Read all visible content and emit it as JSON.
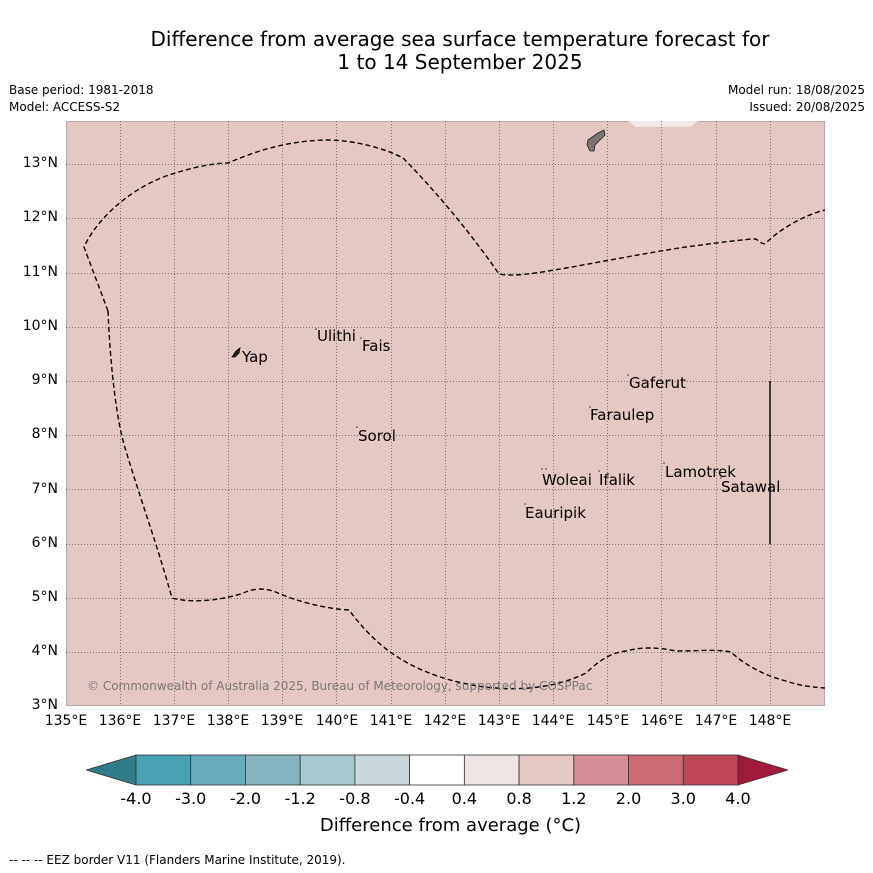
{
  "title": {
    "line1": "Difference from average sea surface temperature forecast for",
    "line2": "1 to 14 September 2025"
  },
  "meta": {
    "base_period": "Base period: 1981-2018",
    "model": "Model: ACCESS-S2",
    "model_run": "Model run: 18/08/2025",
    "issued": "Issued: 20/08/2025"
  },
  "map": {
    "fill_color": "#e6c8c3",
    "longitude_labels": [
      "135°E",
      "136°E",
      "137°E",
      "138°E",
      "139°E",
      "140°E",
      "141°E",
      "142°E",
      "143°E",
      "144°E",
      "145°E",
      "146°E",
      "147°E",
      "148°E"
    ],
    "latitude_labels": [
      "13°N",
      "12°N",
      "11°N",
      "10°N",
      "9°N",
      "8°N",
      "7°N",
      "6°N",
      "5°N",
      "4°N",
      "3°N"
    ],
    "places": [
      {
        "name": "Yap"
      },
      {
        "name": "Ulithi"
      },
      {
        "name": "Fais"
      },
      {
        "name": "Gaferut"
      },
      {
        "name": "Faraulep"
      },
      {
        "name": "Sorol"
      },
      {
        "name": "Lamotrek"
      },
      {
        "name": "Woleai"
      },
      {
        "name": "Ifalik"
      },
      {
        "name": "Satawal"
      },
      {
        "name": "Eauripik"
      }
    ],
    "copyright": "© Commonwealth of Australia 2025, Bureau of Meteorology, supported by COSPPac"
  },
  "colorbar": {
    "labels": [
      "-4.0",
      "-3.0",
      "-2.0",
      "-1.2",
      "-0.8",
      "-0.4",
      "0.4",
      "0.8",
      "1.2",
      "2.0",
      "3.0",
      "4.0"
    ],
    "colors": [
      "#48a2b4",
      "#67acbb",
      "#87b6c2",
      "#a8c7ce",
      "#c8d8dc",
      "#ffffff",
      "#ece5e3",
      "#e6c8c3",
      "#d68d95",
      "#cc6b76",
      "#be4657"
    ],
    "under_color": "#2f7d8c",
    "over_color": "#a11a3b",
    "title": "Difference from average (°C)"
  },
  "footnote": "--  --  -- EEZ border V11 (Flanders Marine Institute, 2019)."
}
